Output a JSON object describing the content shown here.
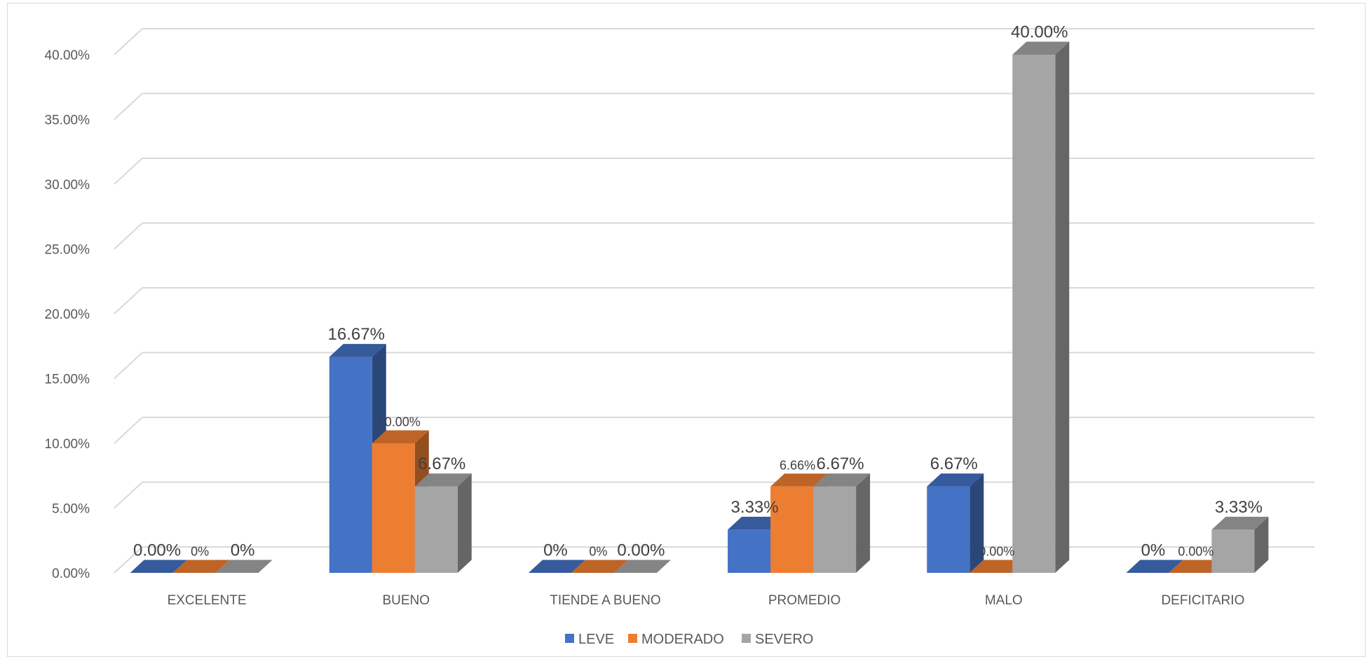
{
  "chart_data": {
    "type": "bar",
    "categories": [
      "EXCELENTE",
      "BUENO",
      "TIENDE A BUENO",
      "PROMEDIO",
      "MALO",
      "DEFICITARIO"
    ],
    "series": [
      {
        "name": "LEVE",
        "color": "#4472c4",
        "values": [
          0,
          16.67,
          0,
          3.33,
          6.67,
          0
        ],
        "labels": [
          "0.00%",
          "16.67%",
          "0%",
          "3.33%",
          "6.67%",
          "0%"
        ]
      },
      {
        "name": "MODERADO",
        "color": "#ed7d31",
        "values": [
          0,
          10.0,
          0,
          6.66,
          0,
          0
        ],
        "labels": [
          "0%",
          "10.00%",
          "0%",
          "6.66%",
          "0.00%",
          "0.00%"
        ]
      },
      {
        "name": "SEVERO",
        "color": "#a5a5a5",
        "values": [
          0,
          6.67,
          0,
          6.67,
          40.0,
          3.33
        ],
        "labels": [
          "0%",
          "6.67%",
          "0.00%",
          "6.67%",
          "40.00%",
          "3.33%"
        ]
      }
    ],
    "yticks": [
      "0.00%",
      "5.00%",
      "10.00%",
      "15.00%",
      "20.00%",
      "25.00%",
      "30.00%",
      "35.00%",
      "40.00%"
    ],
    "ylim": [
      0,
      40
    ],
    "title": "",
    "xlabel": "",
    "ylabel": "",
    "grid": true,
    "legend_position": "bottom"
  }
}
